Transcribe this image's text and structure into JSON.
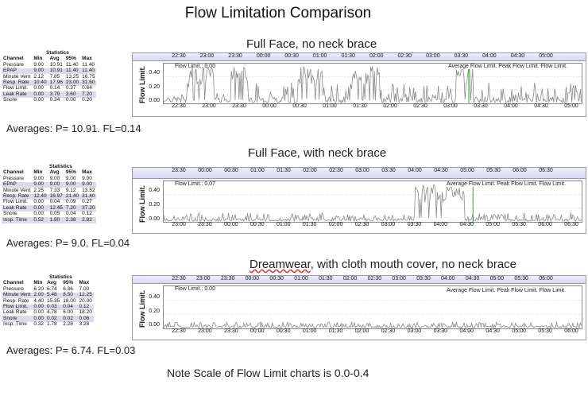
{
  "title": "Flow Limitation Comparison",
  "note": "Note Scale of Flow Limit charts is 0.0-0.4",
  "sections": [
    {
      "subtitle": "Full Face, no neck brace",
      "averages": "Averages: P= 10.91. FL=0.14",
      "stats": {
        "caption": "Statistics",
        "headers": [
          "Channel",
          "Min",
          "Avg",
          "95%",
          "Max"
        ],
        "rows": [
          [
            "Pressure",
            "9.00",
            "10.91",
            "11.40",
            "11.40"
          ],
          [
            "EPAP",
            "9.00",
            "10.91",
            "11.40",
            "11.40"
          ],
          [
            "Minute Vent",
            "2.12",
            "7.85",
            "13.25",
            "16.75"
          ],
          [
            "Resp. Rate",
            "10.40",
            "17.96",
            "23.00",
            "31.60"
          ],
          [
            "Flow Limit.",
            "0.00",
            "0.14",
            "0.37",
            "0.64"
          ],
          [
            "Leak Rate",
            "0.00",
            "3.79",
            "3.60",
            "7.20"
          ],
          [
            "Snore",
            "0.00",
            "0.34",
            "0.00",
            "0.20"
          ]
        ]
      },
      "chart": {
        "y_label": "Flow Limit.",
        "value_label": "Flow Limit.: 0.00",
        "legend": "Average Flow Limit.  Peak Flow Limit.  Flow Limit.",
        "y_ticks": [
          "0.40",
          "0.20",
          "0.00"
        ],
        "x_ticks": [
          "22:30",
          "23:00",
          "23:30",
          "00:00",
          "00:30",
          "01:00",
          "01:30",
          "02:00",
          "02:30",
          "03:00",
          "03:30",
          "04:00",
          "04:30",
          "05:00"
        ],
        "top_ticks": [
          "22:30",
          "23:00",
          "23:30",
          "00:00",
          "00:30",
          "01:00",
          "01:30",
          "02:00",
          "02:30",
          "03:00",
          "03:30",
          "04:00",
          "04:30",
          "05:00"
        ],
        "marker_color": "#22aa22"
      }
    },
    {
      "subtitle": "Full Face, with neck brace",
      "averages": "Averages: P= 9.0. FL=0.04",
      "stats": {
        "caption": "Statistics",
        "headers": [
          "Channel",
          "Min",
          "Avg",
          "95%",
          "Max"
        ],
        "rows": [
          [
            "Pressure",
            "9.00",
            "9.00",
            "9.00",
            "9.00"
          ],
          [
            "EPAP",
            "9.00",
            "9.00",
            "9.00",
            "9.00"
          ],
          [
            "Minute Vent",
            "2.25",
            "7.33",
            "9.12",
            "13.52"
          ],
          [
            "Resp. Rate",
            "12.40",
            "16.97",
            "21.40",
            "31.40"
          ],
          [
            "Flow Limit.",
            "0.00",
            "0.04",
            "0.09",
            "0.27"
          ],
          [
            "Leak Rate",
            "0.00",
            "12.45",
            "7.20",
            "37.20"
          ],
          [
            "Snore",
            "0.00",
            "0.05",
            "0.04",
            "0.12"
          ],
          [
            "Insp. Time",
            "0.52",
            "1.80",
            "2.38",
            "2.82"
          ]
        ]
      },
      "chart": {
        "y_label": "Flow Limit.",
        "value_label": "Flow Limit.: 0.07",
        "legend": "Average Flow Limit.  Peak Flow Limit.  Flow Limit.",
        "y_ticks": [
          "0.40",
          "0.20",
          "0.00"
        ],
        "x_ticks": [
          "23:00",
          "23:30",
          "00:00",
          "00:30",
          "01:00",
          "01:30",
          "02:00",
          "02:30",
          "03:00",
          "03:30",
          "04:00",
          "04:30",
          "05:00",
          "05:30",
          "06:00",
          "06:30"
        ],
        "top_ticks": [
          "23:30",
          "00:00",
          "00:30",
          "01:00",
          "01:30",
          "02:00",
          "02:30",
          "03:00",
          "03:30",
          "04:00",
          "04:30",
          "05:00",
          "05:30",
          "06:00",
          "06:30"
        ],
        "marker_color": "#22aa22"
      }
    },
    {
      "subtitle_link": "Dreamwear",
      "subtitle_rest": ", with cloth mouth cover, no neck brace",
      "averages": "Averages: P= 6.74. FL=0.03",
      "stats": {
        "caption": "Statistics",
        "headers": [
          "Channel",
          "Min",
          "Avg",
          "95%",
          "Max"
        ],
        "rows": [
          [
            "Pressure",
            "6.20",
            "6.74",
            "6.36",
            "7.00"
          ],
          [
            "Minute Vent",
            "2.00",
            "5.48",
            "8.50",
            "12.25"
          ],
          [
            "Resp. Rate",
            "4.40",
            "15.35",
            "18.00",
            "20.00"
          ],
          [
            "Flow Limit.",
            "0.00",
            "0.03",
            "0.04",
            "0.12"
          ],
          [
            "Leak Rate",
            "0.00",
            "4.78",
            "6.00",
            "18.20"
          ],
          [
            "Snore",
            "0.00",
            "0.02",
            "0.02",
            "0.06"
          ],
          [
            "Insp. Time",
            "0.32",
            "1.78",
            "2.28",
            "3.28"
          ]
        ]
      },
      "chart": {
        "y_label": "Flow Limit.",
        "value_label": "Flow Limit.: 0.00",
        "legend": "Average Flow Limit.  Peak Flow Limit.  Flow Limit.",
        "y_ticks": [
          "0.40",
          "0.20",
          "0.00"
        ],
        "x_ticks": [
          "22:30",
          "23:00",
          "23:30",
          "00:00",
          "00:30",
          "01:00",
          "01:30",
          "02:00",
          "02:30",
          "03:00",
          "03:30",
          "04:00",
          "04:30",
          "05:00",
          "05:30",
          "06:00"
        ],
        "top_ticks": [
          "22:30",
          "23:00",
          "23:30",
          "00:00",
          "00:30",
          "01:00",
          "01:30",
          "02:00",
          "02:30",
          "03:00",
          "03:30",
          "04:00",
          "04:30",
          "05:00",
          "05:30",
          "06:00"
        ],
        "marker_color": ""
      }
    }
  ]
}
